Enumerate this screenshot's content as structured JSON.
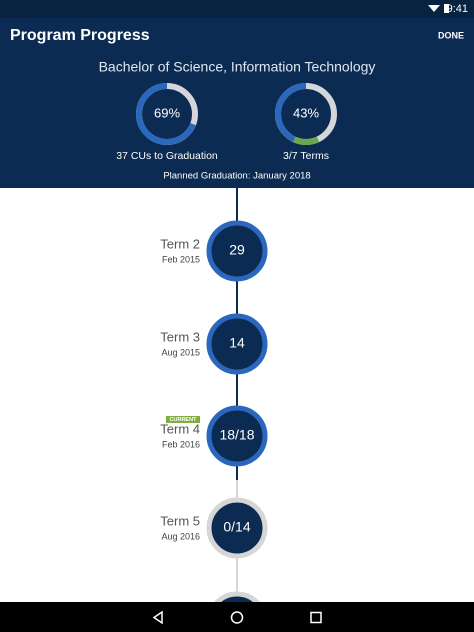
{
  "status_bar": {
    "time": "9:41"
  },
  "header": {
    "title": "Program Progress",
    "action": "DONE"
  },
  "program": {
    "name": "Bachelor of Science, Information Technology",
    "progress": [
      {
        "value": 69,
        "label": "69%",
        "caption": "37 CUs to Graduation"
      },
      {
        "value": 43,
        "label": "43%",
        "caption": "3/7 Terms"
      }
    ],
    "planned_graduation": "Planned Graduation: January 2018"
  },
  "terms": [
    {
      "name": "Term 2",
      "date": "Feb 2015",
      "units": "29"
    },
    {
      "name": "Term 3",
      "date": "Aug 2015",
      "units": "14"
    },
    {
      "name": "Term 4",
      "date": "Feb 2016",
      "units": "18/18",
      "badge": "CURRENT"
    },
    {
      "name": "Term 5",
      "date": "Aug 2016",
      "units": "0/14"
    }
  ]
}
